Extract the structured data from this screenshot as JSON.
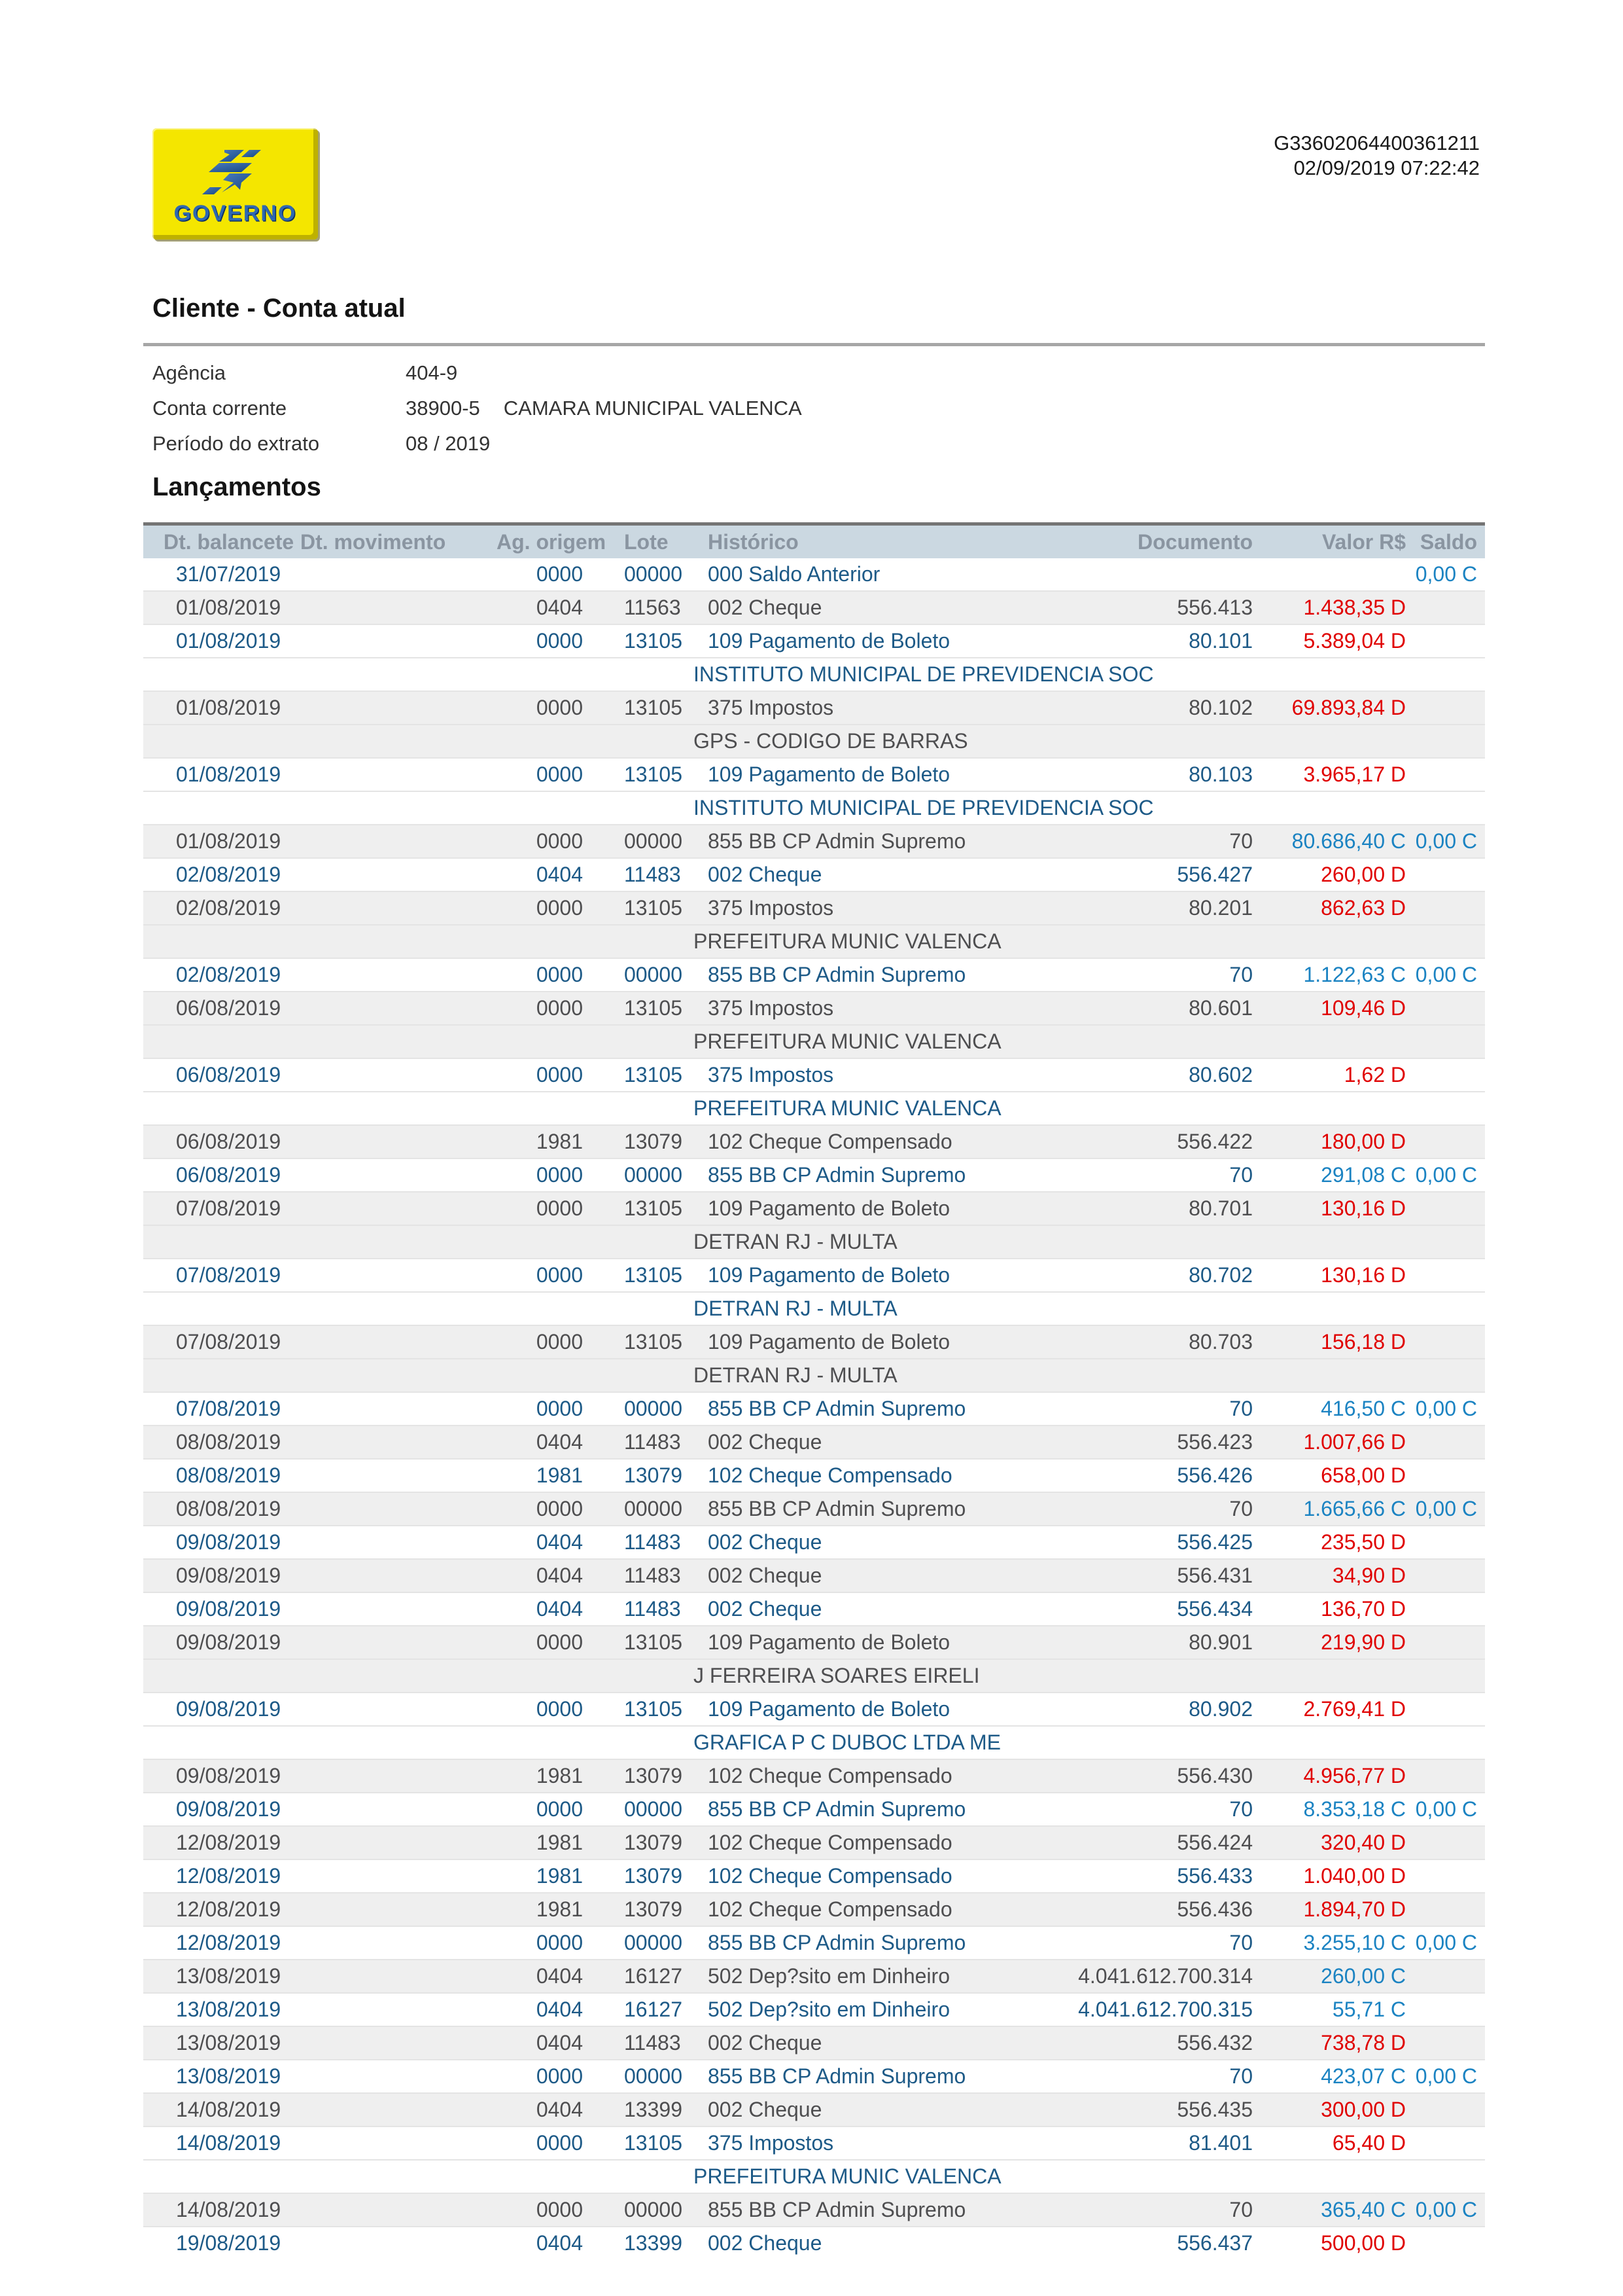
{
  "colors": {
    "navy": "#1d5a87",
    "gray_text": "#4e4e50",
    "debit": "#e00000",
    "credit": "#1b83c2",
    "header_bg": "#cbd8e1",
    "header_text": "#8a95a1",
    "shade_bg": "#efefef",
    "logo_yellow": "#f4e600",
    "logo_blue": "#2e68b2"
  },
  "logo": {
    "text": "GOVERNO"
  },
  "meta": {
    "doc_id": "G33602064400361211",
    "datetime": "02/09/2019 07:22:42"
  },
  "section1_title": "Cliente - Conta atual",
  "account": {
    "agency_label": "Agência",
    "agency": "404-9",
    "account_label": "Conta corrente",
    "account_number": "38900-5",
    "account_name": "CAMARA MUNICIPAL VALENCA",
    "period_label": "Período do extrato",
    "period": "08 / 2019"
  },
  "section2_title": "Lançamentos",
  "table": {
    "columns": [
      {
        "label": "Dt. balancete"
      },
      {
        "label": "Dt. movimento"
      },
      {
        "label": "Ag. origem"
      },
      {
        "label": "Lote"
      },
      {
        "label": "Histórico"
      },
      {
        "label": "Documento"
      },
      {
        "label": "Valor R$"
      },
      {
        "label": "Saldo"
      }
    ],
    "rows": [
      {
        "t": "txn",
        "bg": "w",
        "date": "31/07/2019",
        "mov": "",
        "ag": "0000",
        "lote": "00000",
        "hist": "000 Saldo Anterior",
        "doc": "",
        "val": "",
        "vt": "",
        "saldo": "0,00",
        "st": "C"
      },
      {
        "t": "txn",
        "bg": "g",
        "date": "01/08/2019",
        "mov": "",
        "ag": "0404",
        "lote": "11563",
        "hist": "002 Cheque",
        "doc": "556.413",
        "val": "1.438,35",
        "vt": "D",
        "saldo": "",
        "st": ""
      },
      {
        "t": "txn",
        "bg": "w",
        "date": "01/08/2019",
        "mov": "",
        "ag": "0000",
        "lote": "13105",
        "hist": "109 Pagamento de Boleto",
        "doc": "80.101",
        "val": "5.389,04",
        "vt": "D",
        "saldo": "",
        "st": ""
      },
      {
        "t": "desc",
        "bg": "w",
        "text": "INSTITUTO MUNICIPAL DE PREVIDENCIA SOC"
      },
      {
        "t": "txn",
        "bg": "g",
        "date": "01/08/2019",
        "mov": "",
        "ag": "0000",
        "lote": "13105",
        "hist": "375 Impostos",
        "doc": "80.102",
        "val": "69.893,84",
        "vt": "D",
        "saldo": "",
        "st": ""
      },
      {
        "t": "desc",
        "bg": "g",
        "text": "GPS - CODIGO DE BARRAS"
      },
      {
        "t": "txn",
        "bg": "w",
        "date": "01/08/2019",
        "mov": "",
        "ag": "0000",
        "lote": "13105",
        "hist": "109 Pagamento de Boleto",
        "doc": "80.103",
        "val": "3.965,17",
        "vt": "D",
        "saldo": "",
        "st": ""
      },
      {
        "t": "desc",
        "bg": "w",
        "text": "INSTITUTO MUNICIPAL DE PREVIDENCIA SOC"
      },
      {
        "t": "txn",
        "bg": "g",
        "date": "01/08/2019",
        "mov": "",
        "ag": "0000",
        "lote": "00000",
        "hist": "855 BB CP Admin Supremo",
        "doc": "70",
        "val": "80.686,40",
        "vt": "C",
        "saldo": "0,00",
        "st": "C"
      },
      {
        "t": "txn",
        "bg": "w",
        "date": "02/08/2019",
        "mov": "",
        "ag": "0404",
        "lote": "11483",
        "hist": "002 Cheque",
        "doc": "556.427",
        "val": "260,00",
        "vt": "D",
        "saldo": "",
        "st": ""
      },
      {
        "t": "txn",
        "bg": "g",
        "date": "02/08/2019",
        "mov": "",
        "ag": "0000",
        "lote": "13105",
        "hist": "375 Impostos",
        "doc": "80.201",
        "val": "862,63",
        "vt": "D",
        "saldo": "",
        "st": ""
      },
      {
        "t": "desc",
        "bg": "g",
        "text": "PREFEITURA MUNIC VALENCA"
      },
      {
        "t": "txn",
        "bg": "w",
        "date": "02/08/2019",
        "mov": "",
        "ag": "0000",
        "lote": "00000",
        "hist": "855 BB CP Admin Supremo",
        "doc": "70",
        "val": "1.122,63",
        "vt": "C",
        "saldo": "0,00",
        "st": "C"
      },
      {
        "t": "txn",
        "bg": "g",
        "date": "06/08/2019",
        "mov": "",
        "ag": "0000",
        "lote": "13105",
        "hist": "375 Impostos",
        "doc": "80.601",
        "val": "109,46",
        "vt": "D",
        "saldo": "",
        "st": ""
      },
      {
        "t": "desc",
        "bg": "g",
        "text": "PREFEITURA MUNIC VALENCA"
      },
      {
        "t": "txn",
        "bg": "w",
        "date": "06/08/2019",
        "mov": "",
        "ag": "0000",
        "lote": "13105",
        "hist": "375 Impostos",
        "doc": "80.602",
        "val": "1,62",
        "vt": "D",
        "saldo": "",
        "st": ""
      },
      {
        "t": "desc",
        "bg": "w",
        "text": "PREFEITURA MUNIC VALENCA"
      },
      {
        "t": "txn",
        "bg": "g",
        "date": "06/08/2019",
        "mov": "",
        "ag": "1981",
        "lote": "13079",
        "hist": "102 Cheque Compensado",
        "doc": "556.422",
        "val": "180,00",
        "vt": "D",
        "saldo": "",
        "st": ""
      },
      {
        "t": "txn",
        "bg": "w",
        "date": "06/08/2019",
        "mov": "",
        "ag": "0000",
        "lote": "00000",
        "hist": "855 BB CP Admin Supremo",
        "doc": "70",
        "val": "291,08",
        "vt": "C",
        "saldo": "0,00",
        "st": "C"
      },
      {
        "t": "txn",
        "bg": "g",
        "date": "07/08/2019",
        "mov": "",
        "ag": "0000",
        "lote": "13105",
        "hist": "109 Pagamento de Boleto",
        "doc": "80.701",
        "val": "130,16",
        "vt": "D",
        "saldo": "",
        "st": ""
      },
      {
        "t": "desc",
        "bg": "g",
        "text": "DETRAN RJ - MULTA"
      },
      {
        "t": "txn",
        "bg": "w",
        "date": "07/08/2019",
        "mov": "",
        "ag": "0000",
        "lote": "13105",
        "hist": "109 Pagamento de Boleto",
        "doc": "80.702",
        "val": "130,16",
        "vt": "D",
        "saldo": "",
        "st": ""
      },
      {
        "t": "desc",
        "bg": "w",
        "text": "DETRAN RJ - MULTA"
      },
      {
        "t": "txn",
        "bg": "g",
        "date": "07/08/2019",
        "mov": "",
        "ag": "0000",
        "lote": "13105",
        "hist": "109 Pagamento de Boleto",
        "doc": "80.703",
        "val": "156,18",
        "vt": "D",
        "saldo": "",
        "st": ""
      },
      {
        "t": "desc",
        "bg": "g",
        "text": "DETRAN RJ - MULTA"
      },
      {
        "t": "txn",
        "bg": "w",
        "date": "07/08/2019",
        "mov": "",
        "ag": "0000",
        "lote": "00000",
        "hist": "855 BB CP Admin Supremo",
        "doc": "70",
        "val": "416,50",
        "vt": "C",
        "saldo": "0,00",
        "st": "C"
      },
      {
        "t": "txn",
        "bg": "g",
        "date": "08/08/2019",
        "mov": "",
        "ag": "0404",
        "lote": "11483",
        "hist": "002 Cheque",
        "doc": "556.423",
        "val": "1.007,66",
        "vt": "D",
        "saldo": "",
        "st": ""
      },
      {
        "t": "txn",
        "bg": "w",
        "date": "08/08/2019",
        "mov": "",
        "ag": "1981",
        "lote": "13079",
        "hist": "102 Cheque Compensado",
        "doc": "556.426",
        "val": "658,00",
        "vt": "D",
        "saldo": "",
        "st": ""
      },
      {
        "t": "txn",
        "bg": "g",
        "date": "08/08/2019",
        "mov": "",
        "ag": "0000",
        "lote": "00000",
        "hist": "855 BB CP Admin Supremo",
        "doc": "70",
        "val": "1.665,66",
        "vt": "C",
        "saldo": "0,00",
        "st": "C"
      },
      {
        "t": "txn",
        "bg": "w",
        "date": "09/08/2019",
        "mov": "",
        "ag": "0404",
        "lote": "11483",
        "hist": "002 Cheque",
        "doc": "556.425",
        "val": "235,50",
        "vt": "D",
        "saldo": "",
        "st": ""
      },
      {
        "t": "txn",
        "bg": "g",
        "date": "09/08/2019",
        "mov": "",
        "ag": "0404",
        "lote": "11483",
        "hist": "002 Cheque",
        "doc": "556.431",
        "val": "34,90",
        "vt": "D",
        "saldo": "",
        "st": ""
      },
      {
        "t": "txn",
        "bg": "w",
        "date": "09/08/2019",
        "mov": "",
        "ag": "0404",
        "lote": "11483",
        "hist": "002 Cheque",
        "doc": "556.434",
        "val": "136,70",
        "vt": "D",
        "saldo": "",
        "st": ""
      },
      {
        "t": "txn",
        "bg": "g",
        "date": "09/08/2019",
        "mov": "",
        "ag": "0000",
        "lote": "13105",
        "hist": "109 Pagamento de Boleto",
        "doc": "80.901",
        "val": "219,90",
        "vt": "D",
        "saldo": "",
        "st": ""
      },
      {
        "t": "desc",
        "bg": "g",
        "text": "J FERREIRA SOARES EIRELI"
      },
      {
        "t": "txn",
        "bg": "w",
        "date": "09/08/2019",
        "mov": "",
        "ag": "0000",
        "lote": "13105",
        "hist": "109 Pagamento de Boleto",
        "doc": "80.902",
        "val": "2.769,41",
        "vt": "D",
        "saldo": "",
        "st": ""
      },
      {
        "t": "desc",
        "bg": "w",
        "text": "GRAFICA P C DUBOC LTDA ME"
      },
      {
        "t": "txn",
        "bg": "g",
        "date": "09/08/2019",
        "mov": "",
        "ag": "1981",
        "lote": "13079",
        "hist": "102 Cheque Compensado",
        "doc": "556.430",
        "val": "4.956,77",
        "vt": "D",
        "saldo": "",
        "st": ""
      },
      {
        "t": "txn",
        "bg": "w",
        "date": "09/08/2019",
        "mov": "",
        "ag": "0000",
        "lote": "00000",
        "hist": "855 BB CP Admin Supremo",
        "doc": "70",
        "val": "8.353,18",
        "vt": "C",
        "saldo": "0,00",
        "st": "C"
      },
      {
        "t": "txn",
        "bg": "g",
        "date": "12/08/2019",
        "mov": "",
        "ag": "1981",
        "lote": "13079",
        "hist": "102 Cheque Compensado",
        "doc": "556.424",
        "val": "320,40",
        "vt": "D",
        "saldo": "",
        "st": ""
      },
      {
        "t": "txn",
        "bg": "w",
        "date": "12/08/2019",
        "mov": "",
        "ag": "1981",
        "lote": "13079",
        "hist": "102 Cheque Compensado",
        "doc": "556.433",
        "val": "1.040,00",
        "vt": "D",
        "saldo": "",
        "st": ""
      },
      {
        "t": "txn",
        "bg": "g",
        "date": "12/08/2019",
        "mov": "",
        "ag": "1981",
        "lote": "13079",
        "hist": "102 Cheque Compensado",
        "doc": "556.436",
        "val": "1.894,70",
        "vt": "D",
        "saldo": "",
        "st": ""
      },
      {
        "t": "txn",
        "bg": "w",
        "date": "12/08/2019",
        "mov": "",
        "ag": "0000",
        "lote": "00000",
        "hist": "855 BB CP Admin Supremo",
        "doc": "70",
        "val": "3.255,10",
        "vt": "C",
        "saldo": "0,00",
        "st": "C"
      },
      {
        "t": "txn",
        "bg": "g",
        "date": "13/08/2019",
        "mov": "",
        "ag": "0404",
        "lote": "16127",
        "hist": "502 Dep?sito em Dinheiro",
        "doc": "4.041.612.700.314",
        "val": "260,00",
        "vt": "C",
        "saldo": "",
        "st": ""
      },
      {
        "t": "txn",
        "bg": "w",
        "date": "13/08/2019",
        "mov": "",
        "ag": "0404",
        "lote": "16127",
        "hist": "502 Dep?sito em Dinheiro",
        "doc": "4.041.612.700.315",
        "val": "55,71",
        "vt": "C",
        "saldo": "",
        "st": ""
      },
      {
        "t": "txn",
        "bg": "g",
        "date": "13/08/2019",
        "mov": "",
        "ag": "0404",
        "lote": "11483",
        "hist": "002 Cheque",
        "doc": "556.432",
        "val": "738,78",
        "vt": "D",
        "saldo": "",
        "st": ""
      },
      {
        "t": "txn",
        "bg": "w",
        "date": "13/08/2019",
        "mov": "",
        "ag": "0000",
        "lote": "00000",
        "hist": "855 BB CP Admin Supremo",
        "doc": "70",
        "val": "423,07",
        "vt": "C",
        "saldo": "0,00",
        "st": "C"
      },
      {
        "t": "txn",
        "bg": "g",
        "date": "14/08/2019",
        "mov": "",
        "ag": "0404",
        "lote": "13399",
        "hist": "002 Cheque",
        "doc": "556.435",
        "val": "300,00",
        "vt": "D",
        "saldo": "",
        "st": ""
      },
      {
        "t": "txn",
        "bg": "w",
        "date": "14/08/2019",
        "mov": "",
        "ag": "0000",
        "lote": "13105",
        "hist": "375 Impostos",
        "doc": "81.401",
        "val": "65,40",
        "vt": "D",
        "saldo": "",
        "st": ""
      },
      {
        "t": "desc",
        "bg": "w",
        "text": "PREFEITURA MUNIC VALENCA"
      },
      {
        "t": "txn",
        "bg": "g",
        "date": "14/08/2019",
        "mov": "",
        "ag": "0000",
        "lote": "00000",
        "hist": "855 BB CP Admin Supremo",
        "doc": "70",
        "val": "365,40",
        "vt": "C",
        "saldo": "0,00",
        "st": "C"
      },
      {
        "t": "txn",
        "bg": "w",
        "date": "19/08/2019",
        "mov": "",
        "ag": "0404",
        "lote": "13399",
        "hist": "002 Cheque",
        "doc": "556.437",
        "val": "500,00",
        "vt": "D",
        "saldo": "",
        "st": ""
      }
    ]
  }
}
